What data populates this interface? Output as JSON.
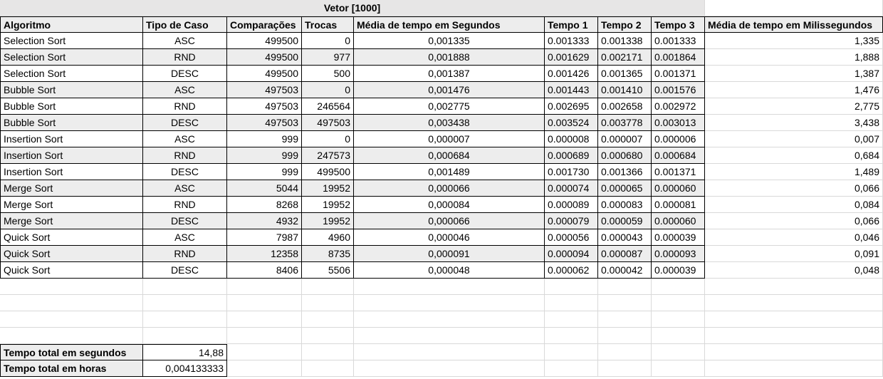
{
  "sheet": {
    "title": "Vetor [1000]",
    "headers": [
      "Algoritmo",
      "Tipo de Caso",
      "Comparações",
      "Trocas",
      "Média de tempo em Segundos",
      "Tempo 1",
      "Tempo 2",
      "Tempo 3",
      "Média de tempo em Milissegundos"
    ],
    "rows": [
      [
        "Selection Sort",
        "ASC",
        "499500",
        "0",
        "0,001335",
        "0.001333",
        "0.001338",
        "0.001333",
        "1,335"
      ],
      [
        "Selection Sort",
        "RND",
        "499500",
        "977",
        "0,001888",
        "0.001629",
        "0.002171",
        "0.001864",
        "1,888"
      ],
      [
        "Selection Sort",
        "DESC",
        "499500",
        "500",
        "0,001387",
        "0.001426",
        "0.001365",
        "0.001371",
        "1,387"
      ],
      [
        "Bubble Sort",
        "ASC",
        "497503",
        "0",
        "0,001476",
        "0.001443",
        "0.001410",
        "0.001576",
        "1,476"
      ],
      [
        "Bubble Sort",
        "RND",
        "497503",
        "246564",
        "0,002775",
        "0.002695",
        "0.002658",
        "0.002972",
        "2,775"
      ],
      [
        "Bubble Sort",
        "DESC",
        "497503",
        "497503",
        "0,003438",
        "0.003524",
        "0.003778",
        "0.003013",
        "3,438"
      ],
      [
        "Insertion Sort",
        "ASC",
        "999",
        "0",
        "0,000007",
        "0.000008",
        "0.000007",
        "0.000006",
        "0,007"
      ],
      [
        "Insertion Sort",
        "RND",
        "999",
        "247573",
        "0,000684",
        "0.000689",
        "0.000680",
        "0.000684",
        "0,684"
      ],
      [
        "Insertion Sort",
        "DESC",
        "999",
        "499500",
        "0,001489",
        "0.001730",
        "0.001366",
        "0.001371",
        "1,489"
      ],
      [
        "Merge Sort",
        "ASC",
        "5044",
        "19952",
        "0,000066",
        "0.000074",
        "0.000065",
        "0.000060",
        "0,066"
      ],
      [
        "Merge Sort",
        "RND",
        "8268",
        "19952",
        "0,000084",
        "0.000089",
        "0.000083",
        "0.000081",
        "0,084"
      ],
      [
        "Merge Sort",
        "DESC",
        "4932",
        "19952",
        "0,000066",
        "0.000079",
        "0.000059",
        "0.000060",
        "0,066"
      ],
      [
        "Quick Sort",
        "ASC",
        "7987",
        "4960",
        "0,000046",
        "0.000056",
        "0.000043",
        "0.000039",
        "0,046"
      ],
      [
        "Quick Sort",
        "RND",
        "12358",
        "8735",
        "0,000091",
        "0.000094",
        "0.000087",
        "0.000093",
        "0,091"
      ],
      [
        "Quick Sort",
        "DESC",
        "8406",
        "5506",
        "0,000048",
        "0.000062",
        "0.000042",
        "0.000039",
        "0,048"
      ]
    ],
    "totals": [
      {
        "label": "Tempo total em segundos",
        "value": "14,88"
      },
      {
        "label": "Tempo total em horas",
        "value": "0,004133333"
      }
    ]
  }
}
